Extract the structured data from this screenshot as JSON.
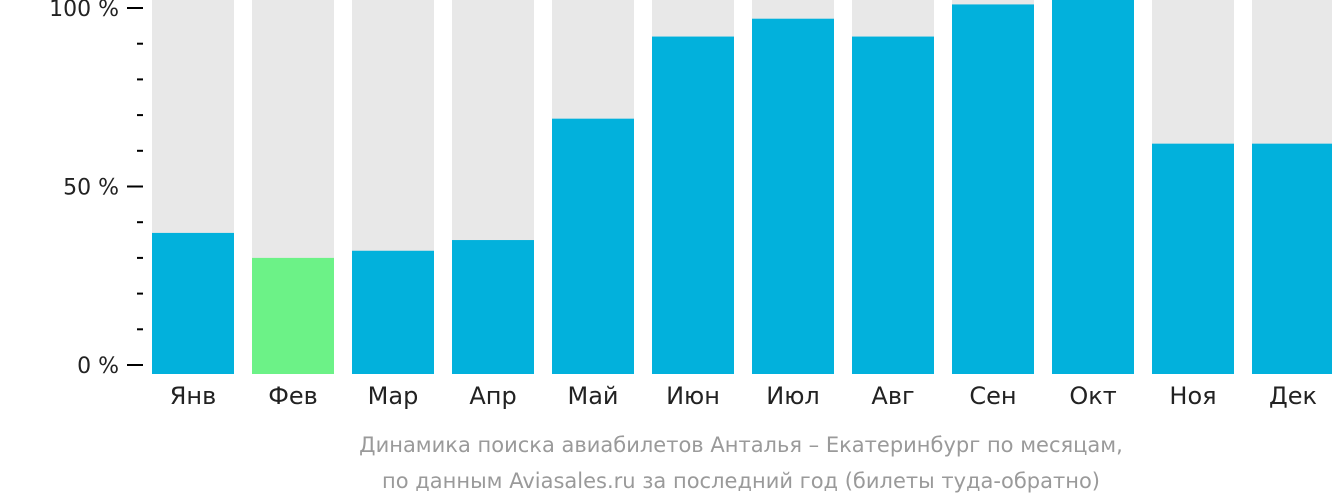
{
  "chart_data": {
    "type": "bar",
    "categories": [
      "Янв",
      "Фев",
      "Мар",
      "Апр",
      "Май",
      "Июн",
      "Июл",
      "Авг",
      "Сен",
      "Окт",
      "Ноя",
      "Дек"
    ],
    "values": [
      37,
      30,
      32,
      35,
      69,
      92,
      97,
      92,
      101,
      105,
      62,
      62
    ],
    "highlight_index": 1,
    "ylim": [
      0,
      100
    ],
    "yticks": [
      {
        "value": 0,
        "label": "0 %"
      },
      {
        "value": 50,
        "label": "50 %"
      },
      {
        "value": 100,
        "label": "100 %"
      }
    ],
    "minor_tick_step": 10,
    "grid": false,
    "colors": {
      "bar": "#02b1dc",
      "highlight": "#6cf287",
      "background_bar": "#e8e8e8",
      "axis": "#000000",
      "caption": "#9a9a9a"
    },
    "caption_lines": [
      "Динамика поиска авиабилетов Анталья – Екатеринбург по месяцам,",
      "по данным Aviasales.ru за последний год (билеты туда-обратно)"
    ]
  }
}
